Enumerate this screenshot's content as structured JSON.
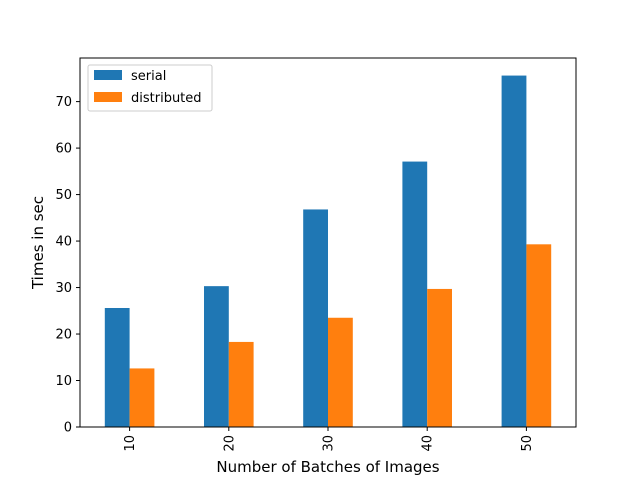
{
  "chart_data": {
    "type": "bar",
    "categories": [
      "10",
      "20",
      "30",
      "40",
      "50"
    ],
    "series": [
      {
        "name": "serial",
        "values": [
          25.6,
          30.3,
          46.8,
          57.1,
          75.6
        ],
        "color": "#1f77b4"
      },
      {
        "name": "distributed",
        "values": [
          12.6,
          18.3,
          23.5,
          29.7,
          39.3
        ],
        "color": "#ff7f0e"
      }
    ],
    "xlabel": "Number of Batches of Images",
    "ylabel": "Times in sec",
    "ylim": [
      0,
      79.38
    ],
    "yticks": [
      0,
      10,
      20,
      30,
      40,
      50,
      60,
      70
    ],
    "xtick_rotation": 90,
    "legend_position": "upper left",
    "grid": false
  }
}
